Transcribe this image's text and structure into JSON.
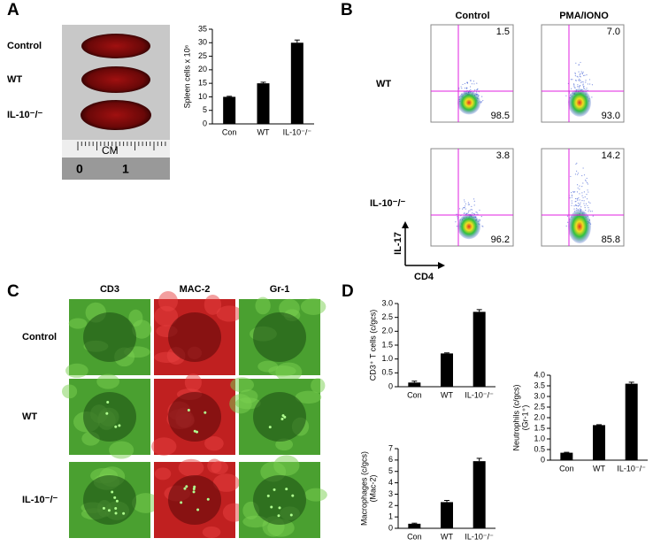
{
  "panel_a": {
    "label": "A",
    "rows": [
      "Control",
      "WT",
      "IL-10⁻/⁻"
    ],
    "ruler": [
      "CM",
      "0",
      "1"
    ]
  },
  "panel_b": {
    "label": "B",
    "columns": [
      "Control",
      "PMA/IONO"
    ],
    "rows": [
      "WT",
      "IL-10⁻/⁻"
    ],
    "quadrants": [
      [
        "1.5",
        "98.5"
      ],
      [
        "7.0",
        "93.0"
      ],
      [
        "3.8",
        "96.2"
      ],
      [
        "14.2",
        "85.8"
      ]
    ],
    "y_axis": "IL-17",
    "x_axis": "CD4"
  },
  "panel_c": {
    "label": "C",
    "columns": [
      "CD3",
      "MAC-2",
      "Gr-1"
    ],
    "rows": [
      "Control",
      "WT",
      "IL-10⁻/⁻"
    ]
  },
  "panel_d": {
    "label": "D"
  },
  "chart_data": [
    {
      "type": "bar",
      "ylabel": [
        "Spleen cells x 10⁶"
      ],
      "categories": [
        "Con",
        "WT",
        "IL-10⁻/⁻"
      ],
      "values": [
        10,
        15,
        30
      ],
      "errors": [
        0.2,
        0.4,
        1.0
      ],
      "color": "#000000",
      "ylim": [
        0,
        35
      ],
      "yticks": [
        0,
        5,
        10,
        15,
        20,
        25,
        30,
        35
      ]
    },
    {
      "type": "bar",
      "ylabel": [
        "CD3⁺ T cells (c/gcs)"
      ],
      "categories": [
        "Con",
        "WT",
        "IL-10⁻/⁻"
      ],
      "values": [
        0.15,
        1.2,
        2.7
      ],
      "errors": [
        0.05,
        0.02,
        0.08
      ],
      "color": "#000000",
      "ylim": [
        0,
        3
      ],
      "yticks": [
        0,
        0.5,
        {
          "value": 1,
          "label": "1.0"
        },
        1.5,
        {
          "value": 2,
          "label": "2.0"
        },
        2.5,
        {
          "value": 3,
          "label": "3.0"
        }
      ]
    },
    {
      "type": "bar",
      "ylabel": [
        "Macrophages (c/gcs)",
        "(Mac-2)"
      ],
      "categories": [
        "Con",
        "WT",
        "IL-10⁻/⁻"
      ],
      "values": [
        0.4,
        2.3,
        5.9
      ],
      "errors": [
        0.05,
        0.15,
        0.25
      ],
      "color": "#000000",
      "ylim": [
        0,
        7
      ],
      "yticks": [
        0,
        1,
        2,
        3,
        4,
        5,
        6,
        7
      ]
    },
    {
      "type": "bar",
      "ylabel": [
        "Neutrophils (c/gcs)",
        "(Gr-1⁺)"
      ],
      "categories": [
        "Con",
        "WT",
        "IL-10⁻/⁻"
      ],
      "values": [
        0.35,
        1.65,
        3.6
      ],
      "errors": [
        0.02,
        0.02,
        0.07
      ],
      "color": "#000000",
      "ylim": [
        0,
        4
      ],
      "yticks": [
        0,
        0.5,
        {
          "value": 1,
          "label": "1.0"
        },
        1.5,
        {
          "value": 2,
          "label": "2.0"
        },
        2.5,
        {
          "value": 3,
          "label": "3.0"
        },
        3.5,
        {
          "value": 4,
          "label": "4.0"
        }
      ]
    }
  ]
}
